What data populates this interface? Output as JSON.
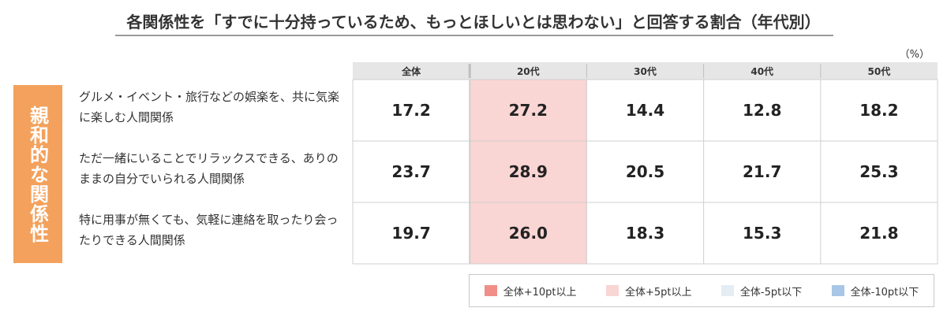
{
  "title": "各関係性を「すでに十分持っているため、もっとほしいとは思わない」と回答する割合（年代別）",
  "unit": "（%）",
  "group_label": "親和的な関係性",
  "colors": {
    "header_bg": "#e6e6e6",
    "header_separator": "#bfbfbf",
    "grid_line": "#cfcfcf",
    "plus10": "#f08f87",
    "plus5": "#f9d5d3",
    "minus5": "#e4edf3",
    "minus10": "#a8c6e6"
  },
  "legend": [
    {
      "label": "全体+10pt以上",
      "color": "#f08f87"
    },
    {
      "label": "全体+5pt以上",
      "color": "#f9d5d3"
    },
    {
      "label": "全体-5pt以下",
      "color": "#e4edf3"
    },
    {
      "label": "全体-10pt以下",
      "color": "#a8c6e6"
    }
  ],
  "chart_data": {
    "type": "table",
    "columns": [
      "全体",
      "20代",
      "30代",
      "40代",
      "50代"
    ],
    "rows": [
      {
        "label": "グルメ・イベント・旅行などの娯楽を、共に気楽に楽しむ人間関係",
        "values": [
          "17.2",
          "27.2",
          "14.4",
          "12.8",
          "18.2"
        ],
        "highlight": [
          "none",
          "plus5",
          "none",
          "none",
          "none"
        ]
      },
      {
        "label": "ただ一緒にいることでリラックスできる、ありのままの自分でいられる人間関係",
        "values": [
          "23.7",
          "28.9",
          "20.5",
          "21.7",
          "25.3"
        ],
        "highlight": [
          "none",
          "plus5",
          "none",
          "none",
          "none"
        ]
      },
      {
        "label": "特に用事が無くても、気軽に連絡を取ったり会ったりできる人間関係",
        "values": [
          "19.7",
          "26.0",
          "18.3",
          "15.3",
          "21.8"
        ],
        "highlight": [
          "none",
          "plus5",
          "none",
          "none",
          "none"
        ]
      }
    ]
  }
}
